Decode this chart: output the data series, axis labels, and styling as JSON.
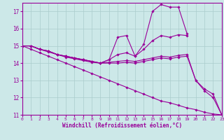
{
  "xlabel": "Windchill (Refroidissement éolien,°C)",
  "bg_color": "#cce8e8",
  "line_color": "#990099",
  "grid_color": "#aacccc",
  "xlim": [
    0,
    23
  ],
  "ylim": [
    11,
    17.5
  ],
  "xticks": [
    0,
    1,
    2,
    3,
    4,
    5,
    6,
    7,
    8,
    9,
    10,
    11,
    12,
    13,
    14,
    15,
    16,
    17,
    18,
    19,
    20,
    21,
    22,
    23
  ],
  "yticks": [
    11,
    12,
    13,
    14,
    15,
    16,
    17
  ],
  "lines": [
    {
      "x": [
        0,
        1,
        2,
        3,
        4,
        5,
        6,
        7,
        8,
        9,
        10,
        11,
        12,
        13,
        14,
        15,
        16,
        17,
        18,
        19,
        20,
        21,
        22,
        23
      ],
      "y": [
        15,
        15,
        14.8,
        14.7,
        14.5,
        14.4,
        14.3,
        14.2,
        14.1,
        14.0,
        14.2,
        15.5,
        15.6,
        14.4,
        15.1,
        17.0,
        17.4,
        17.25,
        17.25,
        15.7,
        null,
        null,
        null,
        null
      ]
    },
    {
      "x": [
        0,
        1,
        2,
        3,
        4,
        5,
        6,
        7,
        8,
        9,
        10,
        11,
        12,
        13,
        14,
        15,
        16,
        17,
        18,
        19,
        20,
        21,
        22,
        23
      ],
      "y": [
        15,
        15,
        14.8,
        14.7,
        14.5,
        14.4,
        14.3,
        14.2,
        14.1,
        14.0,
        14.2,
        14.5,
        14.6,
        14.4,
        14.8,
        15.3,
        15.6,
        15.5,
        15.65,
        15.6,
        null,
        null,
        null,
        null
      ]
    },
    {
      "x": [
        0,
        1,
        2,
        3,
        4,
        5,
        6,
        7,
        8,
        9,
        10,
        11,
        12,
        13,
        14,
        15,
        16,
        17,
        18,
        19,
        20,
        21,
        22,
        23
      ],
      "y": [
        15,
        15,
        14.8,
        14.7,
        14.5,
        14.35,
        14.25,
        14.15,
        14.05,
        14.0,
        14.05,
        14.1,
        14.15,
        14.1,
        14.2,
        14.3,
        14.4,
        14.35,
        14.45,
        14.5,
        13.0,
        12.5,
        12.2,
        11.0
      ]
    },
    {
      "x": [
        0,
        1,
        2,
        3,
        4,
        5,
        6,
        7,
        8,
        9,
        10,
        11,
        12,
        13,
        14,
        15,
        16,
        17,
        18,
        19,
        20,
        21,
        22,
        23
      ],
      "y": [
        15,
        14.8,
        14.6,
        14.4,
        14.2,
        14.0,
        13.8,
        13.6,
        13.4,
        13.2,
        13.0,
        12.8,
        12.6,
        12.4,
        12.2,
        12.0,
        11.8,
        11.7,
        11.55,
        11.4,
        11.3,
        11.15,
        11.05,
        11.0
      ]
    },
    {
      "x": [
        0,
        1,
        2,
        3,
        4,
        5,
        6,
        7,
        8,
        9,
        10,
        11,
        12,
        13,
        14,
        15,
        16,
        17,
        18,
        19,
        20,
        21,
        22,
        23
      ],
      "y": [
        15,
        15,
        14.8,
        14.65,
        14.5,
        14.4,
        14.3,
        14.2,
        14.1,
        14.0,
        14.0,
        14.0,
        14.05,
        14.0,
        14.1,
        14.2,
        14.3,
        14.25,
        14.35,
        14.4,
        13.0,
        12.4,
        12.0,
        11.0
      ]
    }
  ]
}
